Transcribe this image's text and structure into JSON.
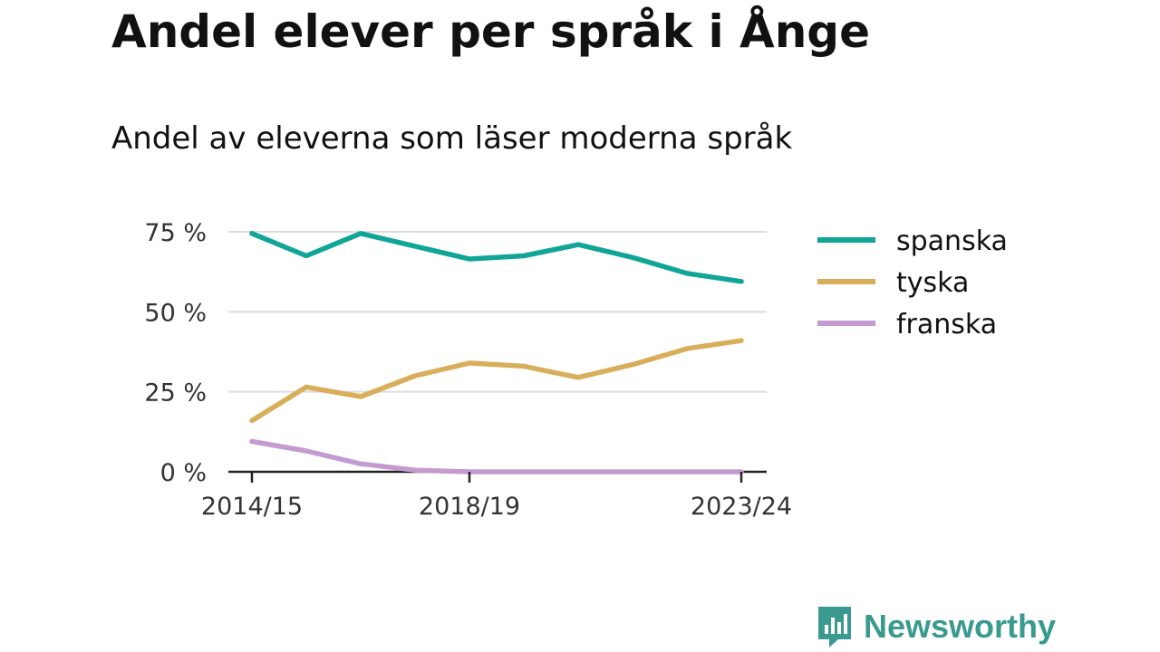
{
  "title": "Andel elever per språk i Ånge",
  "subtitle": "Andel av eleverna som läser moderna språk",
  "brand": {
    "name": "Newsworthy",
    "icon": "newsworthy-logo-icon",
    "color": "#3a9a8f"
  },
  "chart_data": {
    "type": "line",
    "x": [
      "2014/15",
      "2015/16",
      "2016/17",
      "2017/18",
      "2018/19",
      "2019/20",
      "2020/21",
      "2021/22",
      "2022/23",
      "2023/24"
    ],
    "x_tick_labels": [
      "2014/15",
      "2018/19",
      "2023/24"
    ],
    "y_ticks": [
      0,
      25,
      50,
      75
    ],
    "y_tick_labels": [
      "0 %",
      "25 %",
      "50 %",
      "75 %"
    ],
    "ylim": [
      0,
      75
    ],
    "grid": true,
    "legend_position": "right",
    "series": [
      {
        "name": "spanska",
        "color": "#10a597",
        "values": [
          74.5,
          67.5,
          74.5,
          70.5,
          66.5,
          67.5,
          71,
          67,
          62,
          59.5
        ]
      },
      {
        "name": "tyska",
        "color": "#d9ae5b",
        "values": [
          16,
          26.5,
          23.5,
          30,
          34,
          33,
          29.5,
          33.5,
          38.5,
          41
        ]
      },
      {
        "name": "franska",
        "color": "#c39bd1",
        "values": [
          9.5,
          6.5,
          2.5,
          0.5,
          0,
          0,
          0,
          0,
          0,
          0
        ]
      }
    ]
  }
}
